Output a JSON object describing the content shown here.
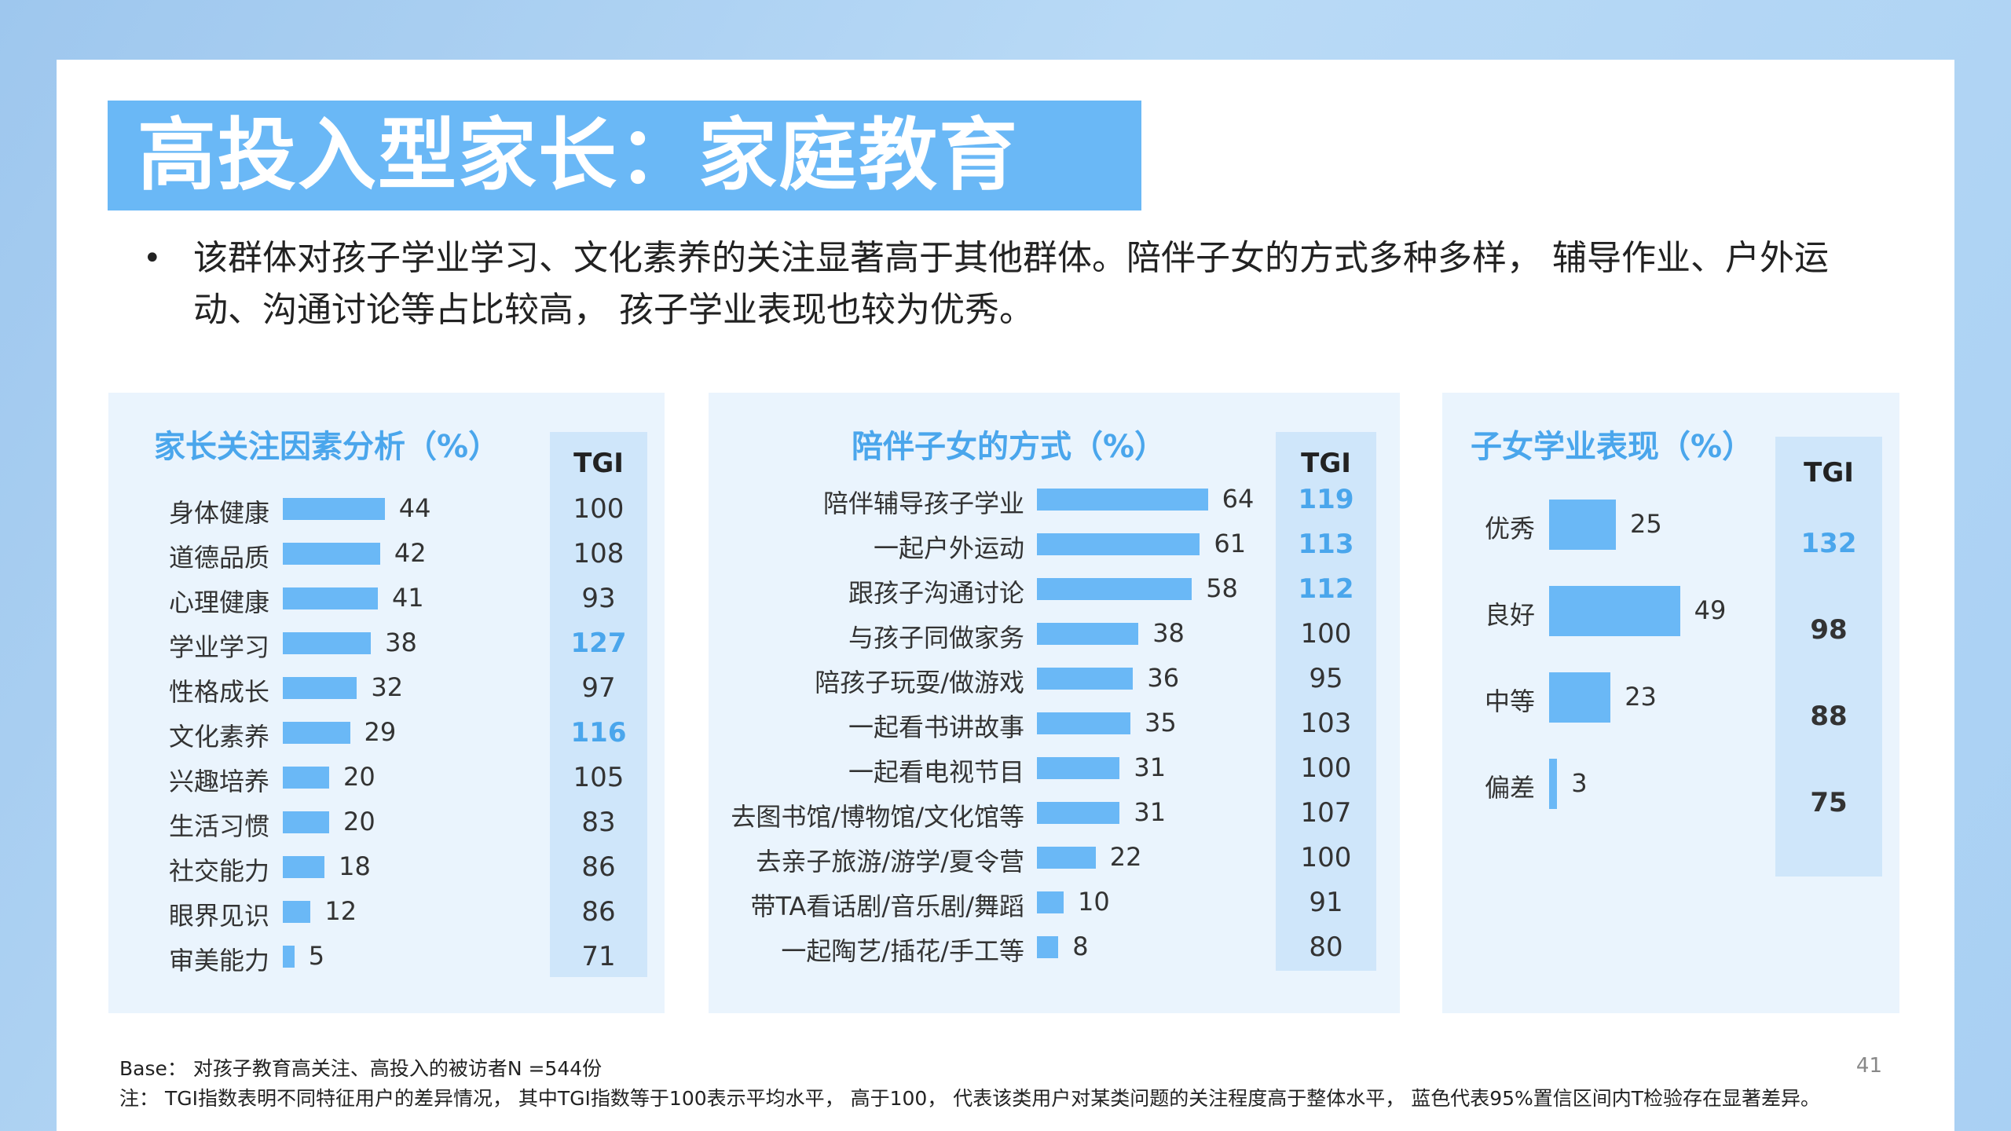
{
  "title": "高投入型家长：家庭教育",
  "bullet": "该群体对孩子学业学习、文化素养的关注显著高于其他群体。陪伴子女的方式多种多样， 辅导作业、户外运动、沟通讨论等占比较高， 孩子学业表现也较为优秀。",
  "tgi_header": "TGI",
  "notes": {
    "base": "Base： 对孩子教育高关注、高投入的被访者N =544份",
    "note": "注： TGI指数表明不同特征用户的差异情况， 其中TGI指数等于100表示平均水平， 高于100， 代表该类用户对某类问题的关注程度高于整体水平， 蓝色代表95%置信区间内T检验存在显著差异。"
  },
  "page_number": "41",
  "colors": {
    "bar": "#6ab8f6",
    "highlight": "#4aa6ec",
    "panel_bg": "#eaf4fd",
    "tgi_bg": "#cfe6fa"
  },
  "chart_data": [
    {
      "type": "bar",
      "title": "家长关注因素分析（%）",
      "categories": [
        "身体健康",
        "道德品质",
        "心理健康",
        "学业学习",
        "性格成长",
        "文化素养",
        "兴趣培养",
        "生活习惯",
        "社交能力",
        "眼界见识",
        "审美能力"
      ],
      "values": [
        44,
        42,
        41,
        38,
        32,
        29,
        20,
        20,
        18,
        12,
        5
      ],
      "tgi": [
        100,
        108,
        93,
        127,
        97,
        116,
        105,
        83,
        86,
        86,
        71
      ],
      "tgi_significant": [
        false,
        false,
        false,
        true,
        false,
        true,
        false,
        false,
        false,
        false,
        false
      ]
    },
    {
      "type": "bar",
      "title": "陪伴子女的方式（%）",
      "categories": [
        "陪伴辅导孩子学业",
        "一起户外运动",
        "跟孩子沟通讨论",
        "与孩子同做家务",
        "陪孩子玩耍/做游戏",
        "一起看书讲故事",
        "一起看电视节目",
        "去图书馆/博物馆/文化馆等",
        "去亲子旅游/游学/夏令营",
        "带TA看话剧/音乐剧/舞蹈",
        "一起陶艺/插花/手工等"
      ],
      "values": [
        64,
        61,
        58,
        38,
        36,
        35,
        31,
        31,
        22,
        10,
        8
      ],
      "tgi": [
        119,
        113,
        112,
        100,
        95,
        103,
        100,
        107,
        100,
        91,
        80
      ],
      "tgi_significant": [
        true,
        true,
        true,
        false,
        false,
        false,
        false,
        false,
        false,
        false,
        false
      ]
    },
    {
      "type": "bar",
      "title": "子女学业表现（%）",
      "categories": [
        "优秀",
        "良好",
        "中等",
        "偏差"
      ],
      "values": [
        25,
        49,
        23,
        3
      ],
      "tgi": [
        132,
        98,
        88,
        75
      ],
      "tgi_significant": [
        true,
        false,
        false,
        false
      ]
    }
  ]
}
